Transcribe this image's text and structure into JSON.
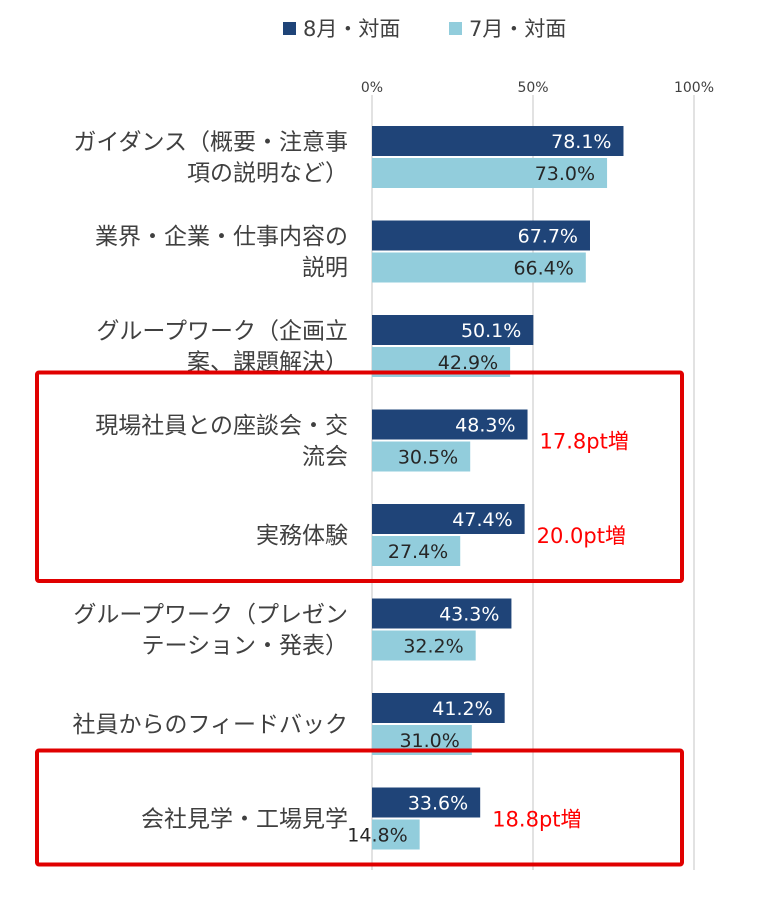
{
  "chart_data": {
    "type": "bar",
    "orientation": "horizontal",
    "xlim": [
      0,
      100
    ],
    "ticks": [
      "0%",
      "50%",
      "100%"
    ],
    "grid": true,
    "legend_position": "top",
    "categories": [
      [
        "ガイダンス（概要・注意事",
        "項の説明など）"
      ],
      [
        "業界・企業・仕事内容の",
        "説明"
      ],
      [
        "グループワーク（企画立",
        "案、課題解決）"
      ],
      [
        "現場社員との座談会・交",
        "流会"
      ],
      [
        "実務体験"
      ],
      [
        "グループワーク（プレゼン",
        "テーション・発表）"
      ],
      [
        "社員からのフィードバック"
      ],
      [
        "会社見学・工場見学"
      ]
    ],
    "series": [
      {
        "name": "8月・対面",
        "color": "#1F4478",
        "values": [
          78.1,
          67.7,
          50.1,
          48.3,
          47.4,
          43.3,
          41.2,
          33.6
        ],
        "labels": [
          "78.1%",
          "67.7%",
          "50.1%",
          "48.3%",
          "47.4%",
          "43.3%",
          "41.2%",
          "33.6%"
        ]
      },
      {
        "name": "7月・対面",
        "color": "#92CDDC",
        "values": [
          73.0,
          66.4,
          42.9,
          30.5,
          27.4,
          32.2,
          31.0,
          14.8
        ],
        "labels": [
          "73.0%",
          "66.4%",
          "42.9%",
          "30.5%",
          "27.4%",
          "32.2%",
          "31.0%",
          "14.8%"
        ]
      }
    ],
    "annotations": [
      {
        "category_index": 3,
        "text": "17.8pt増"
      },
      {
        "category_index": 4,
        "text": "20.0pt増"
      },
      {
        "category_index": 7,
        "text": "18.8pt増"
      }
    ],
    "highlight_groups": [
      [
        3,
        4
      ],
      [
        7
      ]
    ],
    "annotation_color": "#FF0000",
    "highlight_color": "#E00000"
  }
}
